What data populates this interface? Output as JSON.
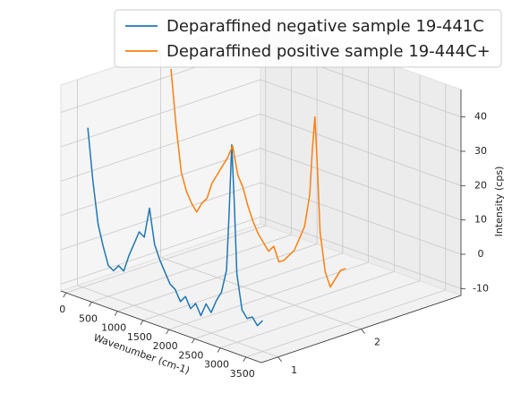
{
  "chart_data": {
    "type": "line3d",
    "x_label": "Wavenumber (cm-1)",
    "z_label": "Intensity (cps)",
    "x": [
      100,
      200,
      300,
      400,
      500,
      600,
      700,
      800,
      900,
      1000,
      1100,
      1200,
      1300,
      1400,
      1500,
      1600,
      1700,
      1800,
      1900,
      2000,
      2100,
      2200,
      2300,
      2400,
      2500,
      2600,
      2700,
      2800,
      2850,
      2900,
      2950,
      3000,
      3100,
      3200,
      3300,
      3400,
      3500
    ],
    "series": [
      {
        "name": "Deparaffined negative sample 19-441C",
        "color": "#1f77b4",
        "y": 1,
        "values": [
          35,
          20,
          8,
          2,
          -3,
          -4,
          -2,
          -3,
          2,
          6,
          10,
          9,
          18,
          8,
          4,
          1,
          -2,
          -3,
          -6,
          -4,
          -7,
          -5,
          -8,
          -4,
          -6,
          -2,
          1,
          8,
          25,
          45,
          28,
          8,
          -2,
          -4,
          -3,
          -5,
          -3
        ]
      },
      {
        "name": "Deparaffined positive sample 19-444C+",
        "color": "#ff7f0e",
        "y": 2,
        "values": [
          44,
          28,
          15,
          10,
          7,
          5,
          8,
          10,
          15,
          18,
          21,
          24,
          28,
          20,
          17,
          12,
          8,
          5,
          3,
          1,
          3,
          -1,
          0,
          2,
          4,
          8,
          12,
          22,
          35,
          45,
          30,
          12,
          1,
          -3,
          0,
          3,
          4
        ]
      }
    ],
    "xlim": [
      -100,
      3800
    ],
    "xticks": [
      0,
      500,
      1000,
      1500,
      2000,
      2500,
      3000,
      3500
    ],
    "ylim": [
      0.8,
      3.2
    ],
    "yticks": [
      1,
      2
    ],
    "zlim": [
      -12,
      48
    ],
    "zticks": [
      -10,
      0,
      10,
      20,
      30,
      40
    ],
    "grid": true,
    "legend": "upper right"
  }
}
